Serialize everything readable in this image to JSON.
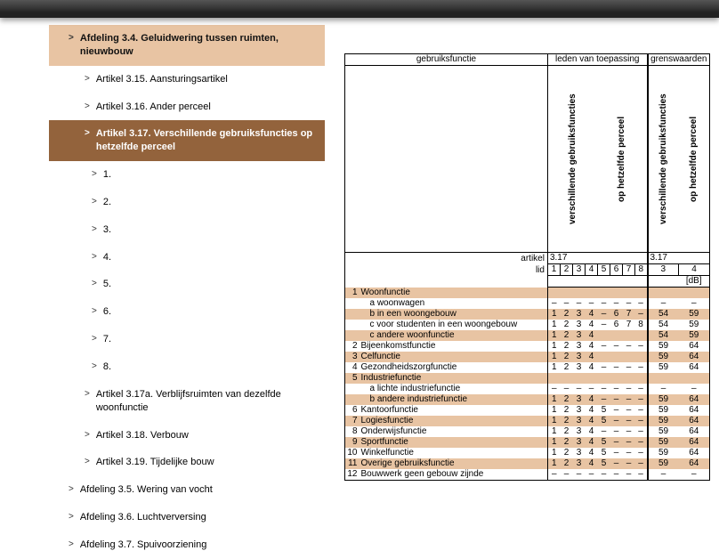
{
  "colors": {
    "peach": "#e8c4a3",
    "brown": "#93633c"
  },
  "sidebar": [
    {
      "label": "Afdeling 3.4. Geluidwering tussen ruimten, nieuwbouw",
      "level": 1,
      "highlight": "peach"
    },
    {
      "label": "Artikel 3.15. Aansturingsartikel",
      "level": 2
    },
    {
      "label": "Artikel 3.16. Ander perceel",
      "level": 2
    },
    {
      "label": "Artikel 3.17. Verschillende gebruiksfuncties op hetzelfde perceel",
      "level": 2,
      "highlight": "brown"
    },
    {
      "label": "1.",
      "level": 3
    },
    {
      "label": "2.",
      "level": 3
    },
    {
      "label": "3.",
      "level": 3
    },
    {
      "label": "4.",
      "level": 3
    },
    {
      "label": "5.",
      "level": 3
    },
    {
      "label": "6.",
      "level": 3
    },
    {
      "label": "7.",
      "level": 3
    },
    {
      "label": "8.",
      "level": 3
    },
    {
      "label": "Artikel 3.17a. Verblijfsruimten van dezelfde woonfunctie",
      "level": 2
    },
    {
      "label": "Artikel 3.18. Verbouw",
      "level": 2
    },
    {
      "label": "Artikel 3.19. Tijdelijke bouw",
      "level": 2
    },
    {
      "label": "Afdeling 3.5. Wering van vocht",
      "level": 1
    },
    {
      "label": "Afdeling 3.6. Luchtverversing",
      "level": 1
    },
    {
      "label": "Afdeling 3.7. Spuivoorziening",
      "level": 1
    }
  ],
  "table": {
    "headers": {
      "col1": "gebruiksfunctie",
      "col2": "leden van toepassing",
      "col3": "grenswaarden",
      "vert_a": "verschillende gebruiksfuncties",
      "vert_b": "op hetzelfde perceel",
      "artikel": "artikel",
      "art_val": "3.17",
      "lid": "lid",
      "gw1": "3",
      "gw2": "4",
      "unit": "[dB]"
    },
    "lid_cols": [
      "1",
      "2",
      "3",
      "4",
      "5",
      "6",
      "7",
      "8"
    ],
    "rows": [
      {
        "idx": "1",
        "name": "Woonfunctie",
        "shade": true,
        "leden": [
          "",
          "",
          "",
          "",
          "",
          "",
          "",
          ""
        ],
        "gw": [
          "",
          ""
        ]
      },
      {
        "idx": "",
        "name": "a woonwagen",
        "indent": 1,
        "shade": false,
        "leden": [
          "–",
          "–",
          "–",
          "–",
          "–",
          "–",
          "–",
          "–"
        ],
        "gw": [
          "–",
          "–"
        ]
      },
      {
        "idx": "",
        "name": "b in een woongebouw",
        "indent": 1,
        "shade": true,
        "leden": [
          "1",
          "2",
          "3",
          "4",
          "–",
          "6",
          "7",
          "–"
        ],
        "gw": [
          "54",
          "59"
        ]
      },
      {
        "idx": "",
        "name": "c voor studenten in een woongebouw",
        "indent": 1,
        "shade": false,
        "leden": [
          "1",
          "2",
          "3",
          "4",
          "–",
          "6",
          "7",
          "8"
        ],
        "gw": [
          "54",
          "59"
        ]
      },
      {
        "idx": "",
        "name": "c andere woonfunctie",
        "indent": 1,
        "shade": true,
        "leden": [
          "1",
          "2",
          "3",
          "4",
          "",
          "",
          "",
          ""
        ],
        "gw": [
          "54",
          "59"
        ]
      },
      {
        "idx": "2",
        "name": "Bijeenkomstfunctie",
        "shade": false,
        "leden": [
          "1",
          "2",
          "3",
          "4",
          "–",
          "–",
          "–",
          "–"
        ],
        "gw": [
          "59",
          "64"
        ]
      },
      {
        "idx": "3",
        "name": "Celfunctie",
        "shade": true,
        "leden": [
          "1",
          "2",
          "3",
          "4",
          "",
          "",
          "",
          ""
        ],
        "gw": [
          "59",
          "64"
        ]
      },
      {
        "idx": "4",
        "name": "Gezondheidszorgfunctie",
        "shade": false,
        "leden": [
          "1",
          "2",
          "3",
          "4",
          "–",
          "–",
          "–",
          "–"
        ],
        "gw": [
          "59",
          "64"
        ]
      },
      {
        "idx": "5",
        "name": "Industriefunctie",
        "shade": true,
        "leden": [
          "",
          "",
          "",
          "",
          "",
          "",
          "",
          ""
        ],
        "gw": [
          "",
          ""
        ]
      },
      {
        "idx": "",
        "name": "a lichte industriefunctie",
        "indent": 1,
        "shade": false,
        "leden": [
          "–",
          "–",
          "–",
          "–",
          "–",
          "–",
          "–",
          "–"
        ],
        "gw": [
          "–",
          "–"
        ]
      },
      {
        "idx": "",
        "name": "b andere industriefunctie",
        "indent": 1,
        "shade": true,
        "leden": [
          "1",
          "2",
          "3",
          "4",
          "–",
          "–",
          "–",
          "–"
        ],
        "gw": [
          "59",
          "64"
        ]
      },
      {
        "idx": "6",
        "name": "Kantoorfunctie",
        "shade": false,
        "leden": [
          "1",
          "2",
          "3",
          "4",
          "5",
          "–",
          "–",
          "–"
        ],
        "gw": [
          "59",
          "64"
        ]
      },
      {
        "idx": "7",
        "name": "Logiesfunctie",
        "shade": true,
        "leden": [
          "1",
          "2",
          "3",
          "4",
          "5",
          "–",
          "–",
          "–"
        ],
        "gw": [
          "59",
          "64"
        ]
      },
      {
        "idx": "8",
        "name": "Onderwijsfunctie",
        "shade": false,
        "leden": [
          "1",
          "2",
          "3",
          "4",
          "–",
          "–",
          "–",
          "–"
        ],
        "gw": [
          "59",
          "64"
        ]
      },
      {
        "idx": "9",
        "name": "Sportfunctie",
        "shade": true,
        "leden": [
          "1",
          "2",
          "3",
          "4",
          "5",
          "–",
          "–",
          "–"
        ],
        "gw": [
          "59",
          "64"
        ]
      },
      {
        "idx": "10",
        "name": "Winkelfunctie",
        "shade": false,
        "leden": [
          "1",
          "2",
          "3",
          "4",
          "5",
          "–",
          "–",
          "–"
        ],
        "gw": [
          "59",
          "64"
        ]
      },
      {
        "idx": "11",
        "name": "Overige gebruiksfunctie",
        "shade": true,
        "leden": [
          "1",
          "2",
          "3",
          "4",
          "5",
          "–",
          "–",
          "–"
        ],
        "gw": [
          "59",
          "64"
        ]
      },
      {
        "idx": "12",
        "name": "Bouwwerk geen gebouw zijnde",
        "shade": false,
        "leden": [
          "–",
          "–",
          "–",
          "–",
          "–",
          "–",
          "–",
          "–"
        ],
        "gw": [
          "–",
          "–"
        ]
      }
    ]
  }
}
